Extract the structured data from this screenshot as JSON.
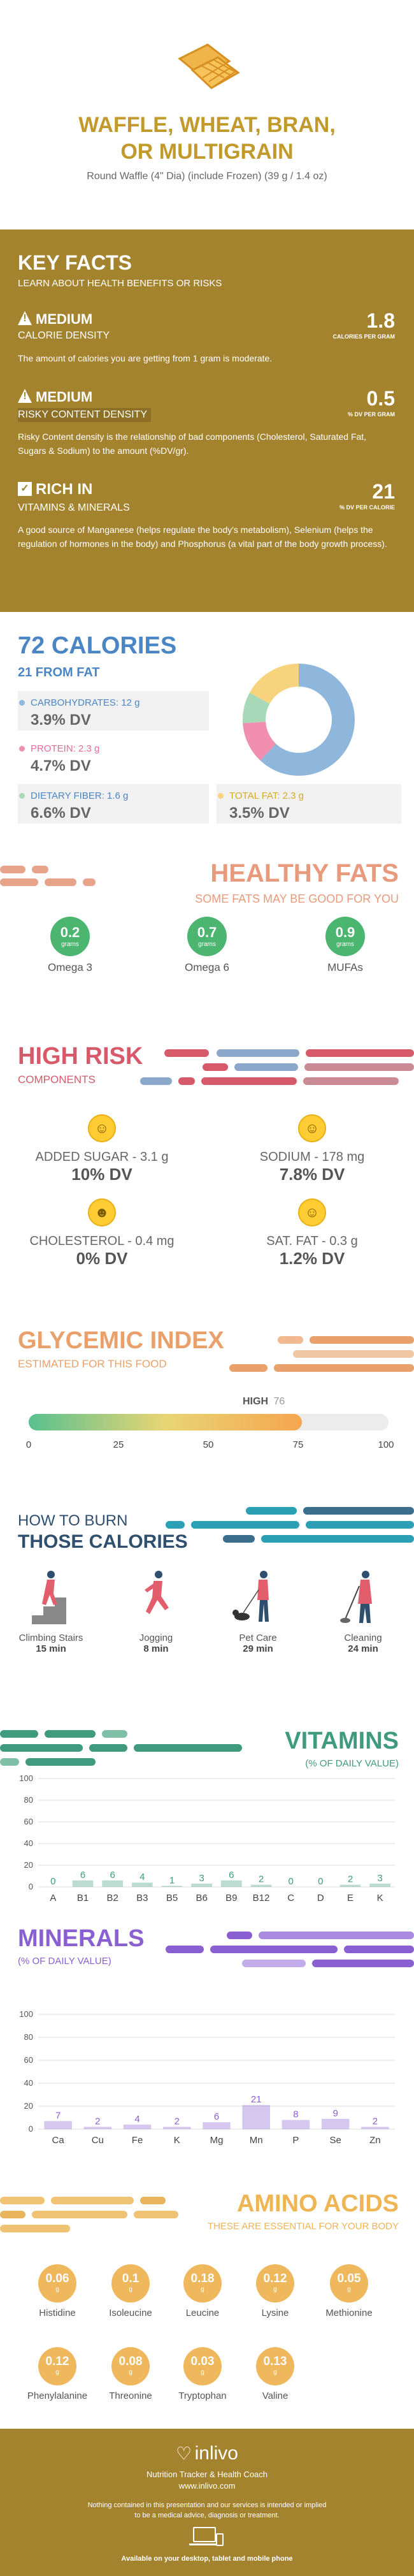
{
  "header": {
    "title_1": "WAFFLE, WHEAT, BRAN,",
    "title_2": "OR MULTIGRAIN",
    "subtitle": "Round Waffle (4\" Dia) (include Frozen) (39 g / 1.4 oz)"
  },
  "key_facts": {
    "title": "KEY FACTS",
    "subtitle": "LEARN ABOUT HEALTH BENEFITS OR RISKS",
    "calorie": {
      "level": "MEDIUM",
      "name": "CALORIE DENSITY",
      "value": "1.8",
      "unit": "CALORIES PER GRAM",
      "desc": "The amount of calories you are getting from 1 gram is moderate."
    },
    "risky": {
      "level": "MEDIUM",
      "name": "RISKY CONTENT DENSITY",
      "value": "0.5",
      "unit": "% DV PER GRAM",
      "desc": "Risky Content density is the relationship of bad components (Cholesterol, Saturated Fat, Sugars & Sodium) to the amount (%DV/gr)."
    },
    "rich": {
      "level": "RICH IN",
      "name": "VITAMINS & MINERALS",
      "value": "21",
      "unit": "% DV PER CALORIE",
      "desc": "A good source of Manganese (helps regulate the body's metabolism), Selenium (helps the regulation of hormones in the body) and Phosphorus (a vital part of the body growth process)."
    }
  },
  "calories": {
    "title": "72 CALORIES",
    "subtitle": "21 FROM FAT",
    "items": [
      {
        "label": "CARBOHYDRATES: 12 g",
        "dv": "3.9% DV",
        "color": "#8fb7dc"
      },
      {
        "label": "PROTEIN: 2.3 g",
        "dv": "4.7% DV",
        "color": "#f08fb0"
      },
      {
        "label": "DIETARY FIBER: 1.6 g",
        "dv": "6.6% DV",
        "color": "#a7d9b8"
      },
      {
        "label": "TOTAL FAT: 2.3 g",
        "dv": "3.5% DV",
        "color": "#f6d37c"
      }
    ],
    "donut": [
      {
        "name": "carbs",
        "value": 62,
        "color": "#8fb7dc"
      },
      {
        "name": "protein",
        "value": 12,
        "color": "#f08fb0"
      },
      {
        "name": "fiber",
        "value": 9,
        "color": "#a7d9b8"
      },
      {
        "name": "fat",
        "value": 17,
        "color": "#f6d37c"
      }
    ]
  },
  "healthy_fats": {
    "title": "HEALTHY FATS",
    "subtitle": "SOME FATS MAY BE GOOD FOR YOU",
    "unit": "grams",
    "items": [
      {
        "value": "0.2",
        "name": "Omega 3"
      },
      {
        "value": "0.7",
        "name": "Omega 6"
      },
      {
        "value": "0.9",
        "name": "MUFAs"
      }
    ]
  },
  "high_risk": {
    "title": "HIGH RISK",
    "subtitle": "COMPONENTS",
    "items": [
      {
        "label": "ADDED SUGAR - 3.1 g",
        "dv": "10% DV"
      },
      {
        "label": "SODIUM - 178 mg",
        "dv": "7.8% DV"
      },
      {
        "label": "CHOLESTEROL - 0.4 mg",
        "dv": "0% DV"
      },
      {
        "label": "SAT. FAT - 0.3 g",
        "dv": "1.2% DV"
      }
    ]
  },
  "glycemic": {
    "title": "GLYCEMIC INDEX",
    "subtitle": "ESTIMATED FOR THIS FOOD",
    "marker_label": "HIGH",
    "value": 76,
    "value_text": "76",
    "ticks": [
      "0",
      "25",
      "50",
      "75",
      "100"
    ]
  },
  "burn": {
    "title_1": "HOW TO BURN",
    "title_2": "THOSE CALORIES",
    "items": [
      {
        "name": "Climbing Stairs",
        "time": "15 min"
      },
      {
        "name": "Jogging",
        "time": "8 min"
      },
      {
        "name": "Pet Care",
        "time": "29 min"
      },
      {
        "name": "Cleaning",
        "time": "24 min"
      }
    ]
  },
  "chart_data": [
    {
      "type": "bar",
      "title": "VITAMINS",
      "subtitle": "(% OF DAILY VALUE)",
      "categories": [
        "A",
        "B1",
        "B2",
        "B3",
        "B5",
        "B6",
        "B9",
        "B12",
        "C",
        "D",
        "E",
        "K"
      ],
      "values": [
        0,
        6,
        6,
        4,
        1,
        3,
        6,
        2,
        0,
        0,
        2,
        3
      ],
      "ylim": [
        0,
        100
      ],
      "yticks": [
        "0",
        "20",
        "40",
        "60",
        "80",
        "100"
      ],
      "color": "#3f9a7e"
    },
    {
      "type": "bar",
      "title": "MINERALS",
      "subtitle": "(% OF DAILY VALUE)",
      "categories": [
        "Ca",
        "Cu",
        "Fe",
        "K",
        "Mg",
        "Mn",
        "P",
        "Se",
        "Zn"
      ],
      "values": [
        7,
        2,
        4,
        2,
        6,
        21,
        8,
        9,
        2
      ],
      "ylim": [
        0,
        100
      ],
      "yticks": [
        "0",
        "20",
        "40",
        "60",
        "80",
        "100"
      ],
      "color": "#8a5fd1"
    }
  ],
  "amino": {
    "title": "AMINO ACIDS",
    "subtitle": "THESE ARE ESSENTIAL FOR YOUR BODY",
    "unit": "g",
    "items": [
      {
        "value": "0.06",
        "name": "Histidine"
      },
      {
        "value": "0.1",
        "name": "Isoleucine"
      },
      {
        "value": "0.18",
        "name": "Leucine"
      },
      {
        "value": "0.12",
        "name": "Lysine"
      },
      {
        "value": "0.05",
        "name": "Methionine"
      },
      {
        "value": "0.12",
        "name": "Phenylalanine"
      },
      {
        "value": "0.08",
        "name": "Threonine"
      },
      {
        "value": "0.03",
        "name": "Tryptophan"
      },
      {
        "value": "0.13",
        "name": "Valine"
      }
    ]
  },
  "footer": {
    "brand": "inlivo",
    "tagline": "Nutrition Tracker & Health Coach",
    "url": "www.inlivo.com",
    "disclaimer_1": "Nothing contained in this presentation and our services is intended or implied",
    "disclaimer_2": "to be a medical advice, diagnosis or treatment.",
    "available": "Available on your desktop, tablet and mobile phone"
  }
}
